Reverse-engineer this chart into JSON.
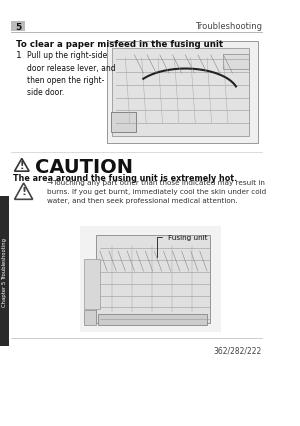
{
  "bg_color": "#ffffff",
  "header_num": "5",
  "header_title": "Troubleshooting",
  "section_title": "To clear a paper misfeed in the fusing unit",
  "step_num": "1",
  "step_text": "Pull up the right-side\ndoor release lever, and\nthen open the right-\nside door.",
  "caution_title": "CAUTION",
  "caution_bold": "The area around the fusing unit is extremely hot.",
  "caution_body": "→Touching any part other than those indicated may result in\nburns. If you get burnt, immediately cool the skin under cold\nwater, and then seek professional medical attention.",
  "fusing_label": "Fusing unit",
  "side_text": "Troubleshooting",
  "side_chapter": "Chapter 5",
  "footer_text": "362/282/222"
}
